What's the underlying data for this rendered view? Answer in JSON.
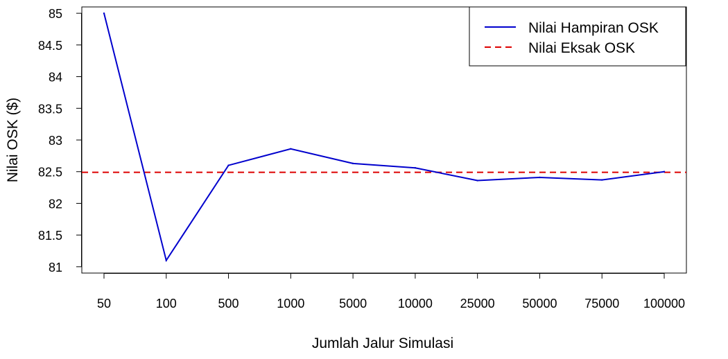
{
  "chart_data": {
    "type": "line",
    "title": "",
    "xlabel": "Jumlah Jalur Simulasi",
    "ylabel": "Nilai OSK ($)",
    "categories": [
      "50",
      "100",
      "500",
      "1000",
      "5000",
      "10000",
      "25000",
      "50000",
      "75000",
      "100000"
    ],
    "ylim": [
      80.9,
      85.1
    ],
    "yticks": [
      81,
      81.5,
      82,
      82.5,
      83,
      83.5,
      84,
      84.5,
      85
    ],
    "ytick_labels": [
      "81",
      "81.5",
      "82",
      "82.5",
      "83",
      "83.5",
      "84",
      "84.5",
      "85"
    ],
    "series": [
      {
        "name": "Nilai Hampiran OSK",
        "style": "solid",
        "color": "#0000CD",
        "values": [
          85.0,
          81.1,
          82.6,
          82.86,
          82.63,
          82.56,
          82.36,
          82.41,
          82.37,
          82.5
        ]
      }
    ],
    "reference_line": {
      "name": "Nilai Eksak OSK",
      "style": "dashed",
      "color": "#DD0000",
      "value": 82.49
    },
    "legend": {
      "position": "top-right",
      "entries": [
        "Nilai Hampiran OSK",
        "Nilai Eksak OSK"
      ]
    },
    "grid": false
  }
}
